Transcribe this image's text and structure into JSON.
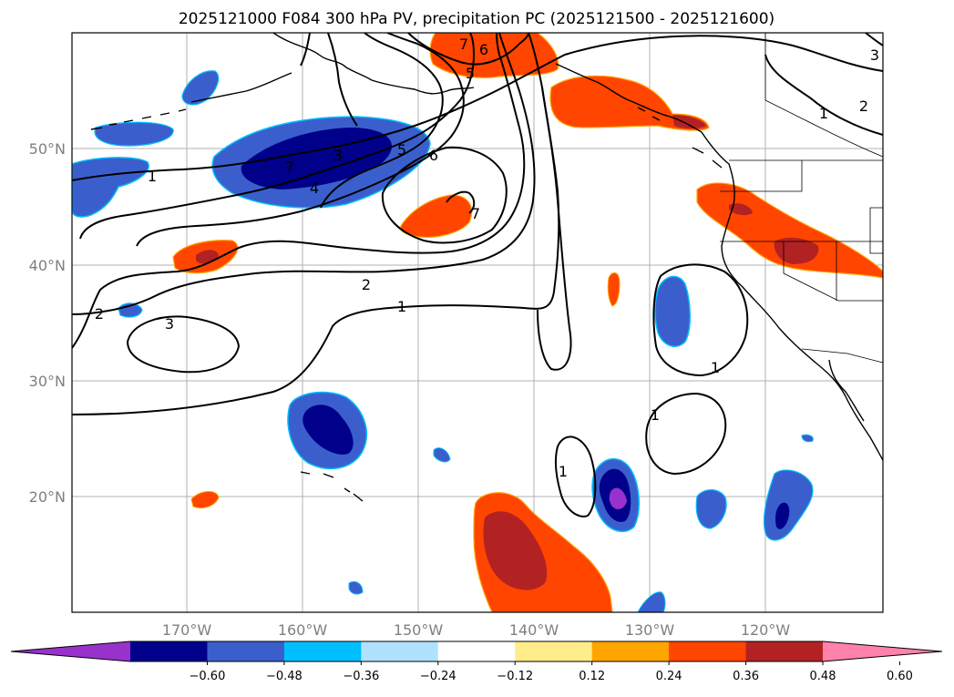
{
  "title": "2025121000 F084 300 hPa PV, precipitation PC (2025121500 - 2025121600)",
  "lat_labels": [
    "50°N",
    "40°N",
    "30°N",
    "20°N"
  ],
  "lon_labels": [
    "170°W",
    "160°W",
    "150°W",
    "140°W",
    "130°W",
    "120°W"
  ],
  "colorbar": {
    "colors": [
      "#9932cc",
      "#00008b",
      "#3a5fcd",
      "#00bfff",
      "#b0e2ff",
      "#ffffff",
      "#ffec8b",
      "#ffa500",
      "#ff4500",
      "#b22222",
      "#ff82ab"
    ],
    "labels": [
      "−0.60",
      "−0.48",
      "−0.36",
      "−0.24",
      "−0.12",
      "0.12",
      "0.24",
      "0.36",
      "0.48",
      "0.60"
    ]
  },
  "contour_labels": {
    "c1a": "1",
    "c1b": "1",
    "c1c": "1",
    "c1d": "1",
    "c1e": "1",
    "c1f": "1",
    "c2a": "2",
    "c2b": "2",
    "c2c": "2",
    "c3a": "3",
    "c3b": "3",
    "c3c": "3",
    "c4a": "4",
    "c5a": "5",
    "c5b": "5",
    "c6a": "6",
    "c6b": "6",
    "c7a": "7",
    "c7b": "7",
    "c7c": "7"
  }
}
